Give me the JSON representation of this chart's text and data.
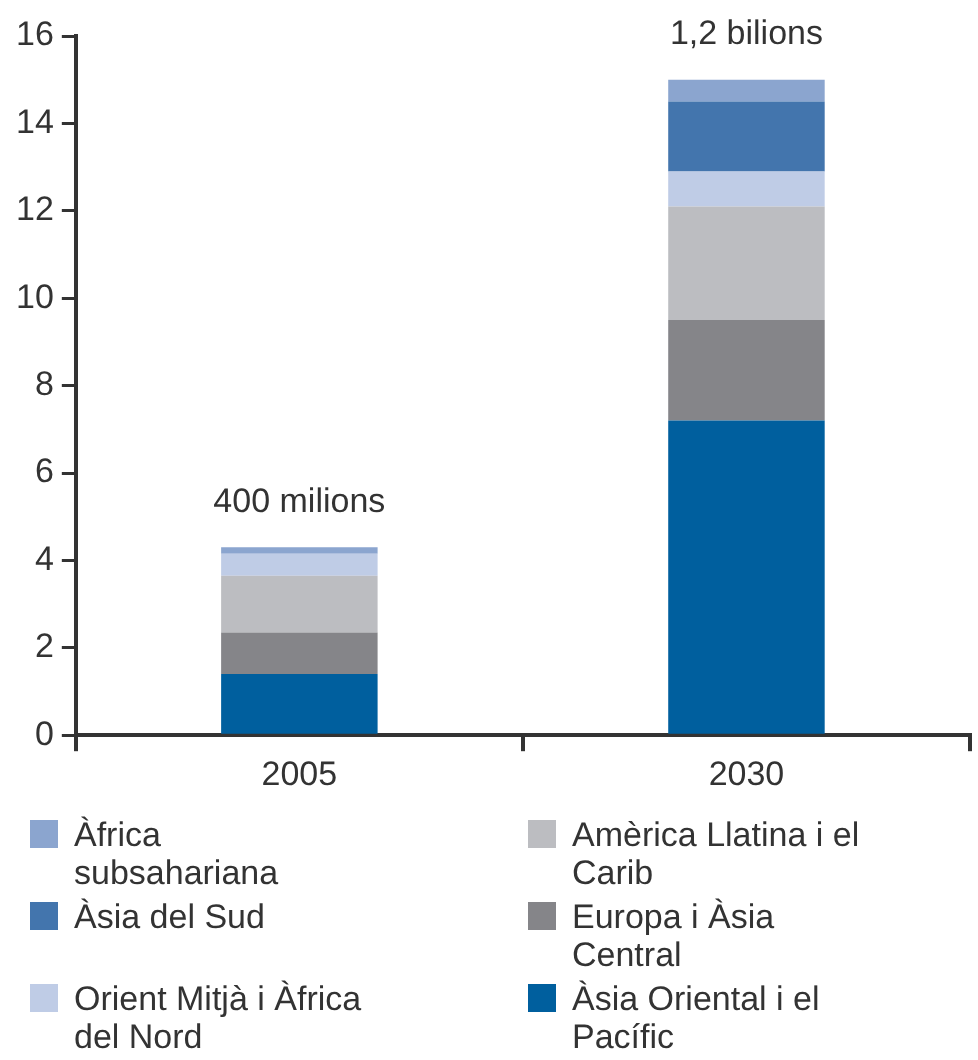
{
  "chart_data": {
    "type": "bar",
    "stacked": true,
    "categories": [
      "2005",
      "2030"
    ],
    "series": [
      {
        "name": "Àsia Oriental i el Pacífic",
        "color": "#005f9e",
        "values": [
          1.4,
          7.2
        ]
      },
      {
        "name": "Europa i Àsia Central",
        "color": "#858589",
        "values": [
          0.95,
          2.3
        ]
      },
      {
        "name": "Amèrica Llatina i el Carib",
        "color": "#bcbdc1",
        "values": [
          1.3,
          2.6
        ]
      },
      {
        "name": "Orient Mitjà i Àfrica del Nord",
        "color": "#bfcce6",
        "values": [
          0.5,
          0.8
        ]
      },
      {
        "name": "Àsia del Sud",
        "color": "#4375ad",
        "values": [
          0,
          1.6
        ]
      },
      {
        "name": "Àfrica subsahariana",
        "color": "#8ba5cf",
        "values": [
          0.15,
          0.5
        ]
      }
    ],
    "ylim": [
      0,
      16
    ],
    "yticks": [
      0,
      2,
      4,
      6,
      8,
      10,
      12,
      14,
      16
    ],
    "grid": false,
    "legend": "bottom",
    "annotations": [
      {
        "text": "400 milions",
        "x": "2005",
        "y": 4.3
      },
      {
        "text": "1,2 bilions",
        "x": "2030",
        "y": 15
      }
    ]
  }
}
